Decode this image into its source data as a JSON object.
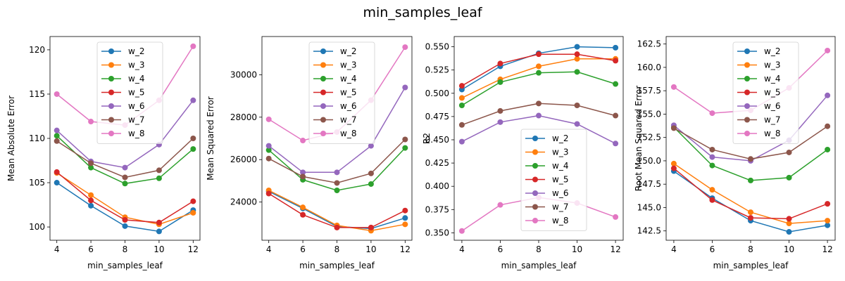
{
  "figure": {
    "suptitle": "min_samples_leaf"
  },
  "colors": [
    "#1f77b4",
    "#ff7f0e",
    "#2ca02c",
    "#d62728",
    "#9467bd",
    "#8c564b",
    "#e377c2"
  ],
  "chart_data": [
    {
      "type": "line",
      "title": "",
      "xlabel": "min_samples_leaf",
      "ylabel": "Mean Absolute Error",
      "x": [
        4,
        6,
        8,
        10,
        12
      ],
      "xlim": [
        3.6,
        12.4
      ],
      "ylim": [
        98.5,
        121.5
      ],
      "xticks": [
        4,
        6,
        8,
        10,
        12
      ],
      "yticks": [
        100,
        105,
        110,
        115,
        120
      ],
      "ytick_labels": [
        "100",
        "105",
        "110",
        "115",
        "120"
      ],
      "legend": "upper-center",
      "series": [
        {
          "name": "w_2",
          "values": [
            105.0,
            102.4,
            100.1,
            99.5,
            101.9
          ]
        },
        {
          "name": "w_3",
          "values": [
            106.1,
            103.6,
            101.1,
            100.3,
            101.6
          ]
        },
        {
          "name": "w_4",
          "values": [
            110.3,
            106.7,
            104.9,
            105.5,
            108.8
          ]
        },
        {
          "name": "w_5",
          "values": [
            106.2,
            103.0,
            100.8,
            100.5,
            102.9
          ]
        },
        {
          "name": "w_6",
          "values": [
            110.9,
            107.4,
            106.7,
            109.3,
            114.3
          ]
        },
        {
          "name": "w_7",
          "values": [
            109.7,
            107.2,
            105.6,
            106.4,
            110.0
          ]
        },
        {
          "name": "w_8",
          "values": [
            115.0,
            111.9,
            111.5,
            114.3,
            120.4
          ]
        }
      ]
    },
    {
      "type": "line",
      "title": "",
      "xlabel": "min_samples_leaf",
      "ylabel": "Mean Squared Error",
      "x": [
        4,
        6,
        8,
        10,
        12
      ],
      "xlim": [
        3.6,
        12.4
      ],
      "ylim": [
        22200,
        31800
      ],
      "xticks": [
        4,
        6,
        8,
        10,
        12
      ],
      "yticks": [
        24000,
        26000,
        28000,
        30000
      ],
      "ytick_labels": [
        "24000",
        "26000",
        "28000",
        "30000"
      ],
      "legend": "upper-center",
      "series": [
        {
          "name": "w_2",
          "values": [
            24500,
            23700,
            22850,
            22750,
            23250
          ]
        },
        {
          "name": "w_3",
          "values": [
            24550,
            23750,
            22900,
            22650,
            22950
          ]
        },
        {
          "name": "w_4",
          "values": [
            26450,
            25050,
            24550,
            24850,
            26550
          ]
        },
        {
          "name": "w_5",
          "values": [
            24400,
            23400,
            22800,
            22800,
            23600
          ]
        },
        {
          "name": "w_6",
          "values": [
            26650,
            25400,
            25400,
            26650,
            29400
          ]
        },
        {
          "name": "w_7",
          "values": [
            26050,
            25200,
            24900,
            25350,
            26950
          ]
        },
        {
          "name": "w_8",
          "values": [
            27900,
            26900,
            27300,
            28800,
            31300
          ]
        }
      ]
    },
    {
      "type": "line",
      "title": "",
      "xlabel": "min_samples_leaf",
      "ylabel": "R2",
      "x": [
        4,
        6,
        8,
        10,
        12
      ],
      "xlim": [
        3.6,
        12.4
      ],
      "ylim": [
        0.342,
        0.561
      ],
      "xticks": [
        4,
        6,
        8,
        10,
        12
      ],
      "yticks": [
        0.35,
        0.375,
        0.4,
        0.425,
        0.45,
        0.475,
        0.5,
        0.525,
        0.55
      ],
      "ytick_labels": [
        "0.350",
        "0.375",
        "0.400",
        "0.425",
        "0.450",
        "0.475",
        "0.500",
        "0.525",
        "0.550"
      ],
      "legend": "lower-center",
      "series": [
        {
          "name": "w_2",
          "values": [
            0.504,
            0.529,
            0.543,
            0.55,
            0.549
          ]
        },
        {
          "name": "w_3",
          "values": [
            0.495,
            0.515,
            0.529,
            0.537,
            0.537
          ]
        },
        {
          "name": "w_4",
          "values": [
            0.487,
            0.512,
            0.522,
            0.523,
            0.51
          ]
        },
        {
          "name": "w_5",
          "values": [
            0.508,
            0.532,
            0.542,
            0.542,
            0.535
          ]
        },
        {
          "name": "w_6",
          "values": [
            0.448,
            0.469,
            0.476,
            0.467,
            0.446
          ]
        },
        {
          "name": "w_7",
          "values": [
            0.466,
            0.481,
            0.489,
            0.487,
            0.476
          ]
        },
        {
          "name": "w_8",
          "values": [
            0.352,
            0.38,
            0.388,
            0.382,
            0.367
          ]
        }
      ]
    },
    {
      "type": "line",
      "title": "",
      "xlabel": "min_samples_leaf",
      "ylabel": "Root Mean Squared Error",
      "x": [
        4,
        6,
        8,
        10,
        12
      ],
      "xlim": [
        3.6,
        12.4
      ],
      "ylim": [
        141.5,
        163.3
      ],
      "xticks": [
        4,
        6,
        8,
        10,
        12
      ],
      "yticks": [
        142.5,
        145,
        147.5,
        150,
        152.5,
        155,
        157.5,
        160,
        162.5
      ],
      "ytick_labels": [
        "142.5",
        "145.0",
        "147.5",
        "150.0",
        "152.5",
        "155.0",
        "157.5",
        "160.0",
        "162.5"
      ],
      "legend": "upper-center",
      "series": [
        {
          "name": "w_2",
          "values": [
            148.9,
            146.0,
            143.6,
            142.4,
            143.1
          ]
        },
        {
          "name": "w_3",
          "values": [
            149.7,
            146.9,
            144.5,
            143.3,
            143.6
          ]
        },
        {
          "name": "w_4",
          "values": [
            153.6,
            149.5,
            147.9,
            148.2,
            151.2
          ]
        },
        {
          "name": "w_5",
          "values": [
            149.2,
            145.8,
            143.9,
            143.8,
            145.4
          ]
        },
        {
          "name": "w_6",
          "values": [
            153.8,
            150.4,
            150.0,
            152.2,
            157.0
          ]
        },
        {
          "name": "w_7",
          "values": [
            153.5,
            151.2,
            150.2,
            150.9,
            153.7
          ]
        },
        {
          "name": "w_8",
          "values": [
            157.9,
            155.1,
            155.4,
            157.8,
            161.8
          ]
        }
      ]
    }
  ]
}
